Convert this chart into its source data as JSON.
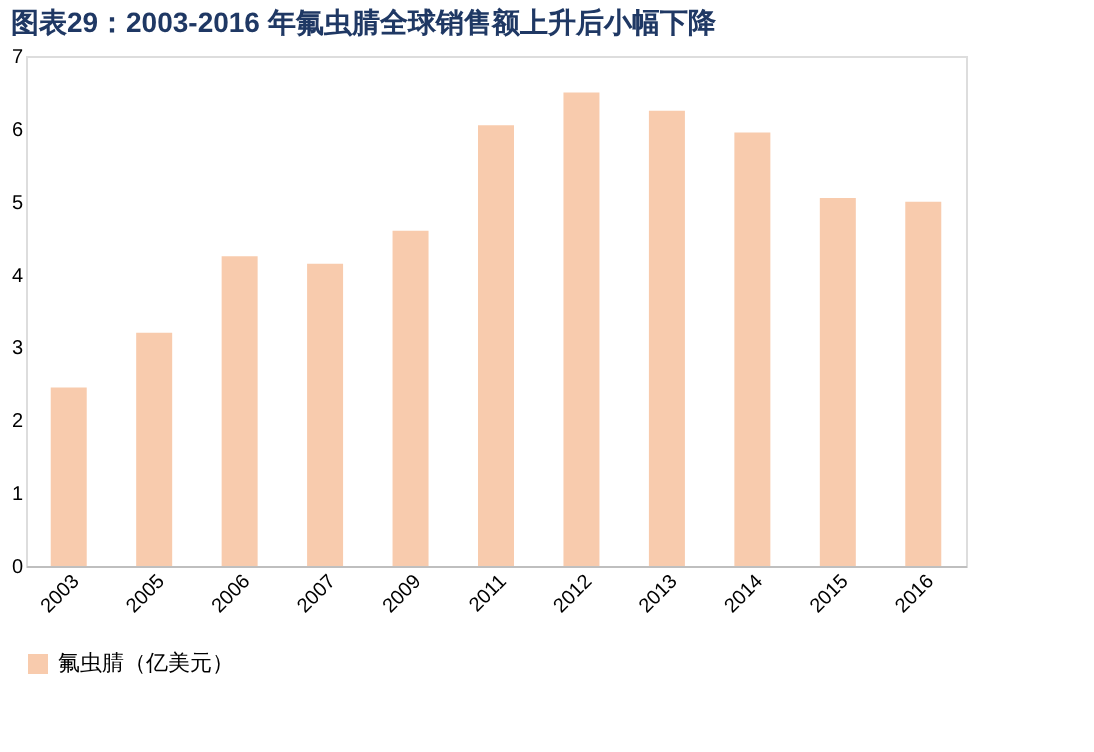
{
  "chart_data": {
    "type": "bar",
    "title": "图表29：2003-2016 年氟虫腈全球销售额上升后小幅下降",
    "categories": [
      "2003",
      "2005",
      "2006",
      "2007",
      "2009",
      "2011",
      "2012",
      "2013",
      "2014",
      "2015",
      "2016"
    ],
    "series": [
      {
        "name": "氟虫腈（亿美元）",
        "color": "#f8cbad",
        "values": [
          2.45,
          3.2,
          4.25,
          4.15,
          4.6,
          6.05,
          6.5,
          6.25,
          5.95,
          5.05,
          5.0
        ]
      }
    ],
    "ylim": [
      0,
      7
    ],
    "yticks": [
      0,
      1,
      2,
      3,
      4,
      5,
      6,
      7
    ],
    "grid": false,
    "legend": "bottom"
  }
}
